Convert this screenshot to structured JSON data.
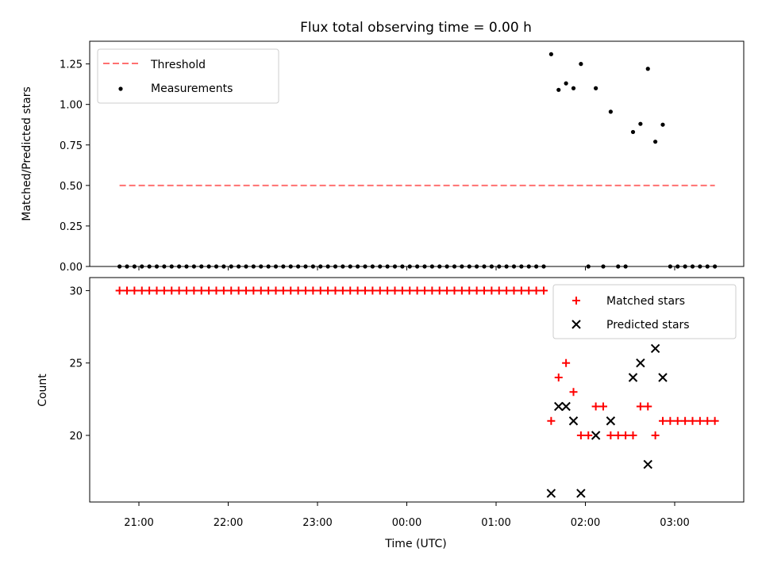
{
  "chart_data": {
    "title": "Flux total observing time = 0.00 h",
    "xlabel": "Time (UTC)",
    "x_tick_labels": [
      "21:00",
      "22:00",
      "23:00",
      "00:00",
      "01:00",
      "02:00",
      "03:00"
    ],
    "top": {
      "type": "scatter",
      "ylabel": "Matched/Predicted stars",
      "ylim": [
        0,
        1.39
      ],
      "y_ticks": [
        "0.00",
        "0.25",
        "0.50",
        "0.75",
        "1.00",
        "1.25"
      ],
      "legend": [
        "Threshold",
        "Measurements"
      ],
      "legend_position": "top-left",
      "threshold": {
        "name": "Threshold",
        "y": 0.5,
        "x_range": [
          "20:47",
          "03:27"
        ],
        "color": "#ff7070"
      },
      "series": [
        {
          "name": "Measurements",
          "color": "#000000",
          "points": [
            {
              "x": "20:47",
              "y": 0
            },
            {
              "x": "20:52",
              "y": 0
            },
            {
              "x": "20:57",
              "y": 0
            },
            {
              "x": "21:02",
              "y": 0
            },
            {
              "x": "21:07",
              "y": 0
            },
            {
              "x": "21:12",
              "y": 0
            },
            {
              "x": "21:17",
              "y": 0
            },
            {
              "x": "21:22",
              "y": 0
            },
            {
              "x": "21:27",
              "y": 0
            },
            {
              "x": "21:32",
              "y": 0
            },
            {
              "x": "21:37",
              "y": 0
            },
            {
              "x": "21:42",
              "y": 0
            },
            {
              "x": "21:47",
              "y": 0
            },
            {
              "x": "21:52",
              "y": 0
            },
            {
              "x": "21:57",
              "y": 0
            },
            {
              "x": "22:02",
              "y": 0
            },
            {
              "x": "22:07",
              "y": 0
            },
            {
              "x": "22:12",
              "y": 0
            },
            {
              "x": "22:17",
              "y": 0
            },
            {
              "x": "22:22",
              "y": 0
            },
            {
              "x": "22:27",
              "y": 0
            },
            {
              "x": "22:32",
              "y": 0
            },
            {
              "x": "22:37",
              "y": 0
            },
            {
              "x": "22:42",
              "y": 0
            },
            {
              "x": "22:47",
              "y": 0
            },
            {
              "x": "22:52",
              "y": 0
            },
            {
              "x": "22:57",
              "y": 0
            },
            {
              "x": "23:02",
              "y": 0
            },
            {
              "x": "23:07",
              "y": 0
            },
            {
              "x": "23:12",
              "y": 0
            },
            {
              "x": "23:17",
              "y": 0
            },
            {
              "x": "23:22",
              "y": 0
            },
            {
              "x": "23:27",
              "y": 0
            },
            {
              "x": "23:32",
              "y": 0
            },
            {
              "x": "23:37",
              "y": 0
            },
            {
              "x": "23:42",
              "y": 0
            },
            {
              "x": "23:47",
              "y": 0
            },
            {
              "x": "23:52",
              "y": 0
            },
            {
              "x": "23:57",
              "y": 0
            },
            {
              "x": "00:02",
              "y": 0
            },
            {
              "x": "00:07",
              "y": 0
            },
            {
              "x": "00:12",
              "y": 0
            },
            {
              "x": "00:17",
              "y": 0
            },
            {
              "x": "00:22",
              "y": 0
            },
            {
              "x": "00:27",
              "y": 0
            },
            {
              "x": "00:32",
              "y": 0
            },
            {
              "x": "00:37",
              "y": 0
            },
            {
              "x": "00:42",
              "y": 0
            },
            {
              "x": "00:47",
              "y": 0
            },
            {
              "x": "00:52",
              "y": 0
            },
            {
              "x": "00:57",
              "y": 0
            },
            {
              "x": "01:02",
              "y": 0
            },
            {
              "x": "01:07",
              "y": 0
            },
            {
              "x": "01:12",
              "y": 0
            },
            {
              "x": "01:17",
              "y": 0
            },
            {
              "x": "01:22",
              "y": 0
            },
            {
              "x": "01:27",
              "y": 0
            },
            {
              "x": "01:32",
              "y": 0
            },
            {
              "x": "01:37",
              "y": 1.31
            },
            {
              "x": "01:42",
              "y": 1.09
            },
            {
              "x": "01:47",
              "y": 1.13
            },
            {
              "x": "01:52",
              "y": 1.1
            },
            {
              "x": "01:57",
              "y": 1.25
            },
            {
              "x": "02:02",
              "y": 0
            },
            {
              "x": "02:07",
              "y": 1.1
            },
            {
              "x": "02:12",
              "y": 0
            },
            {
              "x": "02:17",
              "y": 0.955
            },
            {
              "x": "02:22",
              "y": 0
            },
            {
              "x": "02:27",
              "y": 0
            },
            {
              "x": "02:32",
              "y": 0.83
            },
            {
              "x": "02:37",
              "y": 0.88
            },
            {
              "x": "02:42",
              "y": 1.22
            },
            {
              "x": "02:47",
              "y": 0.77
            },
            {
              "x": "02:52",
              "y": 0.875
            },
            {
              "x": "02:57",
              "y": 0
            },
            {
              "x": "03:02",
              "y": 0
            },
            {
              "x": "03:07",
              "y": 0
            },
            {
              "x": "03:12",
              "y": 0
            },
            {
              "x": "03:17",
              "y": 0
            },
            {
              "x": "03:22",
              "y": 0
            },
            {
              "x": "03:27",
              "y": 0
            }
          ]
        }
      ]
    },
    "bottom": {
      "type": "scatter",
      "ylabel": "Count",
      "ylim": [
        15.4,
        30.9
      ],
      "y_ticks": [
        "20",
        "25",
        "30"
      ],
      "legend": [
        "Matched stars",
        "Predicted stars"
      ],
      "legend_position": "top-right",
      "series": [
        {
          "name": "Matched stars",
          "marker": "+",
          "color": "#ff0000",
          "points": [
            {
              "x": "20:47",
              "y": 30
            },
            {
              "x": "20:52",
              "y": 30
            },
            {
              "x": "20:57",
              "y": 30
            },
            {
              "x": "21:02",
              "y": 30
            },
            {
              "x": "21:07",
              "y": 30
            },
            {
              "x": "21:12",
              "y": 30
            },
            {
              "x": "21:17",
              "y": 30
            },
            {
              "x": "21:22",
              "y": 30
            },
            {
              "x": "21:27",
              "y": 30
            },
            {
              "x": "21:32",
              "y": 30
            },
            {
              "x": "21:37",
              "y": 30
            },
            {
              "x": "21:42",
              "y": 30
            },
            {
              "x": "21:47",
              "y": 30
            },
            {
              "x": "21:52",
              "y": 30
            },
            {
              "x": "21:57",
              "y": 30
            },
            {
              "x": "22:02",
              "y": 30
            },
            {
              "x": "22:07",
              "y": 30
            },
            {
              "x": "22:12",
              "y": 30
            },
            {
              "x": "22:17",
              "y": 30
            },
            {
              "x": "22:22",
              "y": 30
            },
            {
              "x": "22:27",
              "y": 30
            },
            {
              "x": "22:32",
              "y": 30
            },
            {
              "x": "22:37",
              "y": 30
            },
            {
              "x": "22:42",
              "y": 30
            },
            {
              "x": "22:47",
              "y": 30
            },
            {
              "x": "22:52",
              "y": 30
            },
            {
              "x": "22:57",
              "y": 30
            },
            {
              "x": "23:02",
              "y": 30
            },
            {
              "x": "23:07",
              "y": 30
            },
            {
              "x": "23:12",
              "y": 30
            },
            {
              "x": "23:17",
              "y": 30
            },
            {
              "x": "23:22",
              "y": 30
            },
            {
              "x": "23:27",
              "y": 30
            },
            {
              "x": "23:32",
              "y": 30
            },
            {
              "x": "23:37",
              "y": 30
            },
            {
              "x": "23:42",
              "y": 30
            },
            {
              "x": "23:47",
              "y": 30
            },
            {
              "x": "23:52",
              "y": 30
            },
            {
              "x": "23:57",
              "y": 30
            },
            {
              "x": "00:02",
              "y": 30
            },
            {
              "x": "00:07",
              "y": 30
            },
            {
              "x": "00:12",
              "y": 30
            },
            {
              "x": "00:17",
              "y": 30
            },
            {
              "x": "00:22",
              "y": 30
            },
            {
              "x": "00:27",
              "y": 30
            },
            {
              "x": "00:32",
              "y": 30
            },
            {
              "x": "00:37",
              "y": 30
            },
            {
              "x": "00:42",
              "y": 30
            },
            {
              "x": "00:47",
              "y": 30
            },
            {
              "x": "00:52",
              "y": 30
            },
            {
              "x": "00:57",
              "y": 30
            },
            {
              "x": "01:02",
              "y": 30
            },
            {
              "x": "01:07",
              "y": 30
            },
            {
              "x": "01:12",
              "y": 30
            },
            {
              "x": "01:17",
              "y": 30
            },
            {
              "x": "01:22",
              "y": 30
            },
            {
              "x": "01:27",
              "y": 30
            },
            {
              "x": "01:32",
              "y": 30
            },
            {
              "x": "01:37",
              "y": 21
            },
            {
              "x": "01:42",
              "y": 24
            },
            {
              "x": "01:47",
              "y": 25
            },
            {
              "x": "01:52",
              "y": 23
            },
            {
              "x": "01:57",
              "y": 20
            },
            {
              "x": "02:02",
              "y": 20
            },
            {
              "x": "02:07",
              "y": 22
            },
            {
              "x": "02:12",
              "y": 22
            },
            {
              "x": "02:17",
              "y": 20
            },
            {
              "x": "02:22",
              "y": 20
            },
            {
              "x": "02:27",
              "y": 20
            },
            {
              "x": "02:32",
              "y": 20
            },
            {
              "x": "02:37",
              "y": 22
            },
            {
              "x": "02:42",
              "y": 22
            },
            {
              "x": "02:47",
              "y": 20
            },
            {
              "x": "02:52",
              "y": 21
            },
            {
              "x": "02:57",
              "y": 21
            },
            {
              "x": "03:02",
              "y": 21
            },
            {
              "x": "03:07",
              "y": 21
            },
            {
              "x": "03:12",
              "y": 21
            },
            {
              "x": "03:17",
              "y": 21
            },
            {
              "x": "03:22",
              "y": 21
            },
            {
              "x": "03:27",
              "y": 21
            }
          ]
        },
        {
          "name": "Predicted stars",
          "marker": "x",
          "color": "#000000",
          "points": [
            {
              "x": "01:37",
              "y": 16
            },
            {
              "x": "01:42",
              "y": 22
            },
            {
              "x": "01:47",
              "y": 22
            },
            {
              "x": "01:52",
              "y": 21
            },
            {
              "x": "01:57",
              "y": 16
            },
            {
              "x": "02:07",
              "y": 20
            },
            {
              "x": "02:17",
              "y": 21
            },
            {
              "x": "02:32",
              "y": 24
            },
            {
              "x": "02:37",
              "y": 25
            },
            {
              "x": "02:42",
              "y": 18
            },
            {
              "x": "02:47",
              "y": 26
            },
            {
              "x": "02:52",
              "y": 24
            }
          ]
        }
      ]
    }
  }
}
